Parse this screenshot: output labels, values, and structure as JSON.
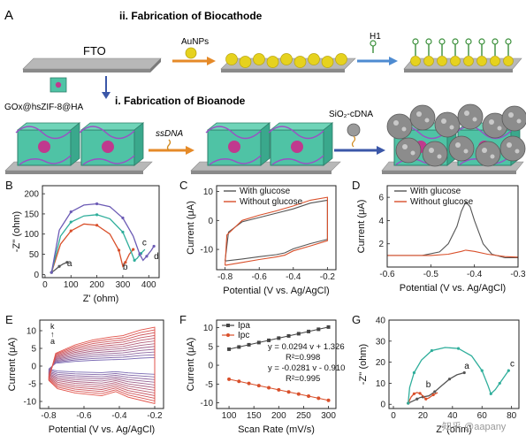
{
  "schematic": {
    "panel_label": "A",
    "cathode_title": "ii. Fabrication of Biocathode",
    "anode_title": "i. Fabrication of Bioanode",
    "fto_label": "FTO",
    "aunps_label": "AuNPs",
    "h1_label": "H1",
    "gox_label": "GOx@hsZIF-8@HA",
    "ssdna_label": "ssDNA",
    "sio2_label": "SiO₂-cDNA",
    "colors": {
      "substrate": "#9a9a9a",
      "aunp": "#e6d21e",
      "cube": "#4fc3a5",
      "hairpin": "#3a8f3a",
      "sphere": "#8c8c8c"
    }
  },
  "watermark": "知乎 @aapany",
  "chart_data": [
    {
      "panel": "B",
      "type": "line",
      "title": "",
      "xlabel": "Z' (ohm)",
      "ylabel": "-Z'' (ohm)",
      "xlim": [
        -10,
        440
      ],
      "ylim": [
        -8,
        220
      ],
      "xticks": [
        0,
        100,
        200,
        300,
        400
      ],
      "yticks": [
        0,
        50,
        100,
        150,
        200
      ],
      "series": [
        {
          "name": "a",
          "color": "#555555",
          "points": [
            [
              25,
              5
            ],
            [
              40,
              12
            ],
            [
              55,
              20
            ],
            [
              70,
              26
            ],
            [
              85,
              30
            ]
          ]
        },
        {
          "name": "b",
          "color": "#d9502b",
          "points": [
            [
              25,
              5
            ],
            [
              60,
              75
            ],
            [
              100,
              108
            ],
            [
              150,
              125
            ],
            [
              200,
              122
            ],
            [
              250,
              100
            ],
            [
              285,
              60
            ],
            [
              300,
              20
            ],
            [
              310,
              30
            ],
            [
              325,
              50
            ],
            [
              340,
              62
            ]
          ]
        },
        {
          "name": "c",
          "color": "#2fae9b",
          "points": [
            [
              25,
              5
            ],
            [
              60,
              95
            ],
            [
              100,
              130
            ],
            [
              150,
              145
            ],
            [
              200,
              148
            ],
            [
              250,
              138
            ],
            [
              300,
              105
            ],
            [
              330,
              60
            ],
            [
              345,
              35
            ],
            [
              355,
              40
            ],
            [
              370,
              52
            ],
            [
              385,
              62
            ]
          ]
        },
        {
          "name": "d",
          "color": "#6c5bb5",
          "points": [
            [
              25,
              5
            ],
            [
              55,
              110
            ],
            [
              100,
              155
            ],
            [
              150,
              172
            ],
            [
              200,
              175
            ],
            [
              250,
              168
            ],
            [
              300,
              140
            ],
            [
              340,
              95
            ],
            [
              365,
              50
            ],
            [
              378,
              35
            ],
            [
              392,
              45
            ],
            [
              410,
              60
            ],
            [
              420,
              70
            ]
          ]
        }
      ],
      "labels": [
        {
          "text": "a",
          "x": 85,
          "y": 20
        },
        {
          "text": "b",
          "x": 300,
          "y": 12
        },
        {
          "text": "c",
          "x": 375,
          "y": 72
        },
        {
          "text": "d",
          "x": 420,
          "y": 38
        }
      ]
    },
    {
      "panel": "C",
      "type": "line",
      "title": "",
      "xlabel": "Potential (V vs. Ag/AgCl)",
      "ylabel": "Current (μA)",
      "xlim": [
        -0.85,
        -0.15
      ],
      "ylim": [
        -17,
        12
      ],
      "xticks": [
        -0.8,
        -0.6,
        -0.4,
        -0.2
      ],
      "yticks": [
        -10,
        0,
        10
      ],
      "legend": [
        "With glucose",
        "Without glucose"
      ],
      "legend_position": "top-left",
      "series": [
        {
          "name": "With glucose",
          "color": "#555555",
          "points": [
            [
              -0.8,
              -14
            ],
            [
              -0.7,
              -13.3
            ],
            [
              -0.6,
              -12.5
            ],
            [
              -0.5,
              -11.8
            ],
            [
              -0.45,
              -11.2
            ],
            [
              -0.4,
              -9.8
            ],
            [
              -0.3,
              -8
            ],
            [
              -0.2,
              -6.5
            ],
            [
              -0.2,
              7
            ],
            [
              -0.3,
              6
            ],
            [
              -0.4,
              4
            ],
            [
              -0.5,
              2.5
            ],
            [
              -0.6,
              1
            ],
            [
              -0.7,
              -0.5
            ],
            [
              -0.78,
              -4
            ],
            [
              -0.8,
              -14
            ]
          ]
        },
        {
          "name": "Without glucose",
          "color": "#d9502b",
          "points": [
            [
              -0.8,
              -15.5
            ],
            [
              -0.7,
              -14.5
            ],
            [
              -0.6,
              -13.5
            ],
            [
              -0.5,
              -12.6
            ],
            [
              -0.45,
              -12
            ],
            [
              -0.4,
              -10.5
            ],
            [
              -0.3,
              -8.8
            ],
            [
              -0.2,
              -7
            ],
            [
              -0.2,
              8
            ],
            [
              -0.3,
              7
            ],
            [
              -0.4,
              5
            ],
            [
              -0.5,
              3.3
            ],
            [
              -0.6,
              1.8
            ],
            [
              -0.7,
              0
            ],
            [
              -0.79,
              -5
            ],
            [
              -0.8,
              -15.5
            ]
          ]
        }
      ]
    },
    {
      "panel": "D",
      "type": "line",
      "title": "",
      "xlabel": "Potential (V vs. Ag/AgCl)",
      "ylabel": "Current (μA)",
      "xlim": [
        -0.6,
        -0.3
      ],
      "ylim": [
        0,
        7
      ],
      "xticks": [
        -0.6,
        -0.5,
        -0.4,
        -0.3
      ],
      "yticks": [
        2,
        4,
        6
      ],
      "legend": [
        "With glucose",
        "Without glucose"
      ],
      "legend_position": "top-left",
      "series": [
        {
          "name": "With glucose",
          "color": "#555555",
          "points": [
            [
              -0.6,
              1.0
            ],
            [
              -0.52,
              1.0
            ],
            [
              -0.48,
              1.3
            ],
            [
              -0.46,
              2.0
            ],
            [
              -0.44,
              3.5
            ],
            [
              -0.43,
              4.8
            ],
            [
              -0.42,
              5.6
            ],
            [
              -0.41,
              5.2
            ],
            [
              -0.4,
              4.0
            ],
            [
              -0.38,
              2.0
            ],
            [
              -0.36,
              1.1
            ],
            [
              -0.33,
              0.8
            ],
            [
              -0.3,
              0.8
            ]
          ]
        },
        {
          "name": "Without glucose",
          "color": "#d9502b",
          "points": [
            [
              -0.6,
              1.0
            ],
            [
              -0.5,
              1.0
            ],
            [
              -0.46,
              1.1
            ],
            [
              -0.43,
              1.35
            ],
            [
              -0.42,
              1.45
            ],
            [
              -0.4,
              1.35
            ],
            [
              -0.37,
              1.1
            ],
            [
              -0.33,
              0.9
            ],
            [
              -0.3,
              0.85
            ]
          ]
        }
      ]
    },
    {
      "panel": "E",
      "type": "line",
      "title": "",
      "xlabel": "Potential (V vs. Ag/AgCl)",
      "ylabel": "Current (μA)",
      "xlim": [
        -0.85,
        -0.15
      ],
      "ylim": [
        -12,
        13
      ],
      "xticks": [
        -0.8,
        -0.6,
        -0.4,
        -0.2
      ],
      "yticks": [
        -10,
        -5,
        0,
        5,
        10
      ],
      "curve_count": 12,
      "scale_min": 0.22,
      "scale_max": 1.0,
      "annotation": {
        "top": "k",
        "arrow": "↑",
        "bottom": "a"
      },
      "color_start": "#7a6ab3",
      "color_end": "#e2534a"
    },
    {
      "panel": "F",
      "type": "scatter",
      "title": "",
      "xlabel": "Scan Rate (mV/s)",
      "ylabel": "Current (μA)",
      "xlim": [
        75,
        315
      ],
      "ylim": [
        -11.5,
        12
      ],
      "xticks": [
        100,
        150,
        200,
        250,
        300
      ],
      "yticks": [
        -10,
        -5,
        0,
        5,
        10
      ],
      "legend_position": "top-left",
      "series": [
        {
          "name": "Ipa",
          "color": "#444444",
          "marker": "square",
          "x": [
            100,
            120,
            140,
            160,
            180,
            200,
            220,
            240,
            260,
            280,
            300
          ],
          "y": [
            4.27,
            4.85,
            5.44,
            6.03,
            6.62,
            7.21,
            7.79,
            8.38,
            8.97,
            9.56,
            10.15
          ]
        },
        {
          "name": "Ipc",
          "color": "#d9502b",
          "marker": "circle",
          "x": [
            100,
            120,
            140,
            160,
            180,
            200,
            220,
            240,
            260,
            280,
            300
          ],
          "y": [
            -3.72,
            -4.28,
            -4.84,
            -5.41,
            -5.97,
            -6.53,
            -7.09,
            -7.65,
            -8.22,
            -8.78,
            -9.34
          ]
        }
      ],
      "fits": [
        {
          "equation": "y = 0.0294 v + 1.326",
          "r2": "R²=0.998"
        },
        {
          "equation": "y = -0.0281 v - 0.910",
          "r2": "R²=0.995"
        }
      ]
    },
    {
      "panel": "G",
      "type": "line",
      "title": "",
      "xlabel": "Z' (ohm)",
      "ylabel": "-Z'' (ohm)",
      "xlim": [
        -3,
        85
      ],
      "ylim": [
        -2,
        40
      ],
      "xticks": [
        0,
        20,
        40,
        60,
        80
      ],
      "yticks": [
        0,
        10,
        20,
        30,
        40
      ],
      "series": [
        {
          "name": "a",
          "color": "#555555",
          "points": [
            [
              10,
              0.5
            ],
            [
              13,
              1.5
            ],
            [
              16,
              2.5
            ],
            [
              18,
              3.2
            ],
            [
              20,
              3.5
            ],
            [
              24,
              4
            ],
            [
              28,
              6
            ],
            [
              33,
              9
            ],
            [
              38,
              12
            ],
            [
              43,
              14
            ],
            [
              48,
              15
            ]
          ]
        },
        {
          "name": "b",
          "color": "#d9502b",
          "points": [
            [
              10,
              0.5
            ],
            [
              12,
              3.5
            ],
            [
              14,
              5
            ],
            [
              16,
              5.6
            ],
            [
              18,
              5.2
            ],
            [
              20,
              4
            ],
            [
              22,
              2.5
            ],
            [
              24,
              3
            ],
            [
              27,
              4.5
            ],
            [
              30,
              5.5
            ]
          ]
        },
        {
          "name": "c",
          "color": "#2fae9b",
          "points": [
            [
              10,
              0.5
            ],
            [
              11,
              8
            ],
            [
              14,
              15
            ],
            [
              19,
              21
            ],
            [
              26,
              25.5
            ],
            [
              35,
              27
            ],
            [
              44,
              26.5
            ],
            [
              53,
              23
            ],
            [
              60,
              16
            ],
            [
              64,
              9
            ],
            [
              66,
              5
            ],
            [
              69,
              7
            ],
            [
              72,
              10
            ],
            [
              75,
              13
            ],
            [
              78,
              16
            ]
          ]
        }
      ],
      "labels": [
        {
          "text": "a",
          "x": 48,
          "y": 17
        },
        {
          "text": "b",
          "x": 22,
          "y": 8
        },
        {
          "text": "c",
          "x": 79,
          "y": 18
        }
      ]
    }
  ]
}
